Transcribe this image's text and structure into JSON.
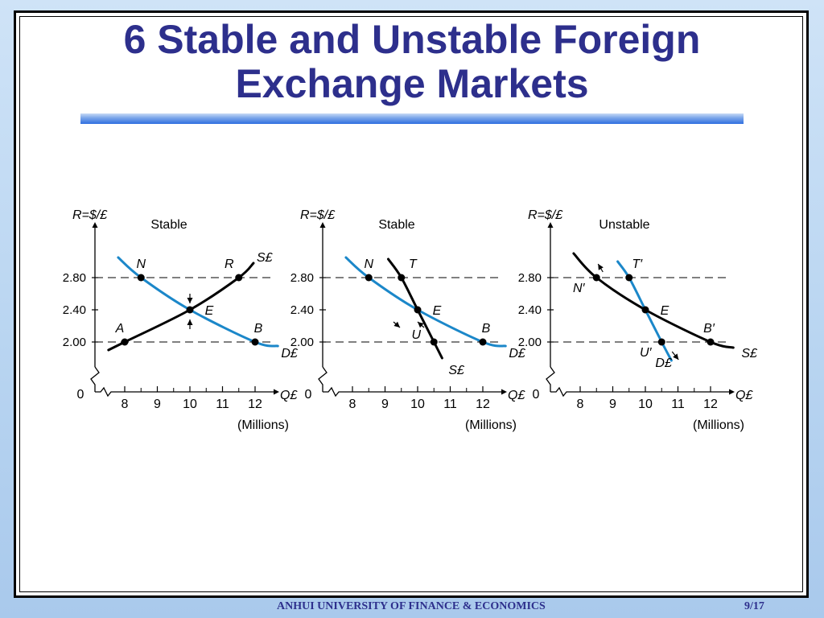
{
  "slide": {
    "title_line1": "6 Stable and Unstable Foreign",
    "title_line2": "Exchange Markets",
    "footer": "ANHUI UNIVERSITY OF FINANCE & ECONOMICS",
    "page": "9/17"
  },
  "colors": {
    "title": "#2d2f8c",
    "blue_curve": "#1b87c9",
    "black_curve": "#000000"
  },
  "chart_data": [
    {
      "type": "line",
      "title": "Stable",
      "ylabel": "R=$/£",
      "xlabel": "Q£",
      "xunit": "(Millions)",
      "xticks": [
        8,
        9,
        10,
        11,
        12
      ],
      "yticks": [
        "2.00",
        "2.40",
        "2.80"
      ],
      "origin": "0",
      "series": [
        {
          "name": "D£",
          "color": "blue",
          "points": [
            [
              7.8,
              3.05
            ],
            [
              8.5,
              2.8
            ],
            [
              10,
              2.4
            ],
            [
              12,
              2.0
            ],
            [
              12.7,
              1.95
            ]
          ]
        },
        {
          "name": "S£",
          "color": "black",
          "points": [
            [
              7.5,
              1.9
            ],
            [
              8,
              2.0
            ],
            [
              10,
              2.4
            ],
            [
              11.5,
              2.8
            ],
            [
              11.95,
              2.98
            ]
          ]
        }
      ],
      "points": [
        {
          "label": "N",
          "x": 8.5,
          "y": 2.8
        },
        {
          "label": "R",
          "x": 11.5,
          "y": 2.8
        },
        {
          "label": "E",
          "x": 10,
          "y": 2.4
        },
        {
          "label": "A",
          "x": 8,
          "y": 2.0
        },
        {
          "label": "B",
          "x": 12,
          "y": 2.0
        }
      ],
      "arrows": [
        "down toward E from above",
        "up toward E from below"
      ]
    },
    {
      "type": "line",
      "title": "Stable",
      "ylabel": "R=$/£",
      "xlabel": "Q£",
      "xunit": "(Millions)",
      "xticks": [
        8,
        9,
        10,
        11,
        12
      ],
      "yticks": [
        "2.00",
        "2.40",
        "2.80"
      ],
      "origin": "0",
      "series": [
        {
          "name": "D£",
          "color": "blue",
          "points": [
            [
              7.8,
              3.05
            ],
            [
              8.5,
              2.8
            ],
            [
              10,
              2.4
            ],
            [
              12,
              2.0
            ],
            [
              12.7,
              1.95
            ]
          ]
        },
        {
          "name": "S£",
          "color": "black",
          "points": [
            [
              9.1,
              3.03
            ],
            [
              9.5,
              2.8
            ],
            [
              10,
              2.4
            ],
            [
              10.5,
              2.0
            ],
            [
              10.75,
              1.8
            ]
          ]
        }
      ],
      "points": [
        {
          "label": "N",
          "x": 8.5,
          "y": 2.8
        },
        {
          "label": "T",
          "x": 9.5,
          "y": 2.8
        },
        {
          "label": "E",
          "x": 10,
          "y": 2.4
        },
        {
          "label": "U",
          "x": 10.5,
          "y": 2.0
        },
        {
          "label": "B",
          "x": 12,
          "y": 2.0
        }
      ],
      "arrows": [
        "from T toward E",
        "from U toward E"
      ]
    },
    {
      "type": "line",
      "title": "Unstable",
      "ylabel": "R=$/£",
      "xlabel": "Q£",
      "xunit": "(Millions)",
      "xticks": [
        8,
        9,
        10,
        11,
        12
      ],
      "yticks": [
        "2.00",
        "2.40",
        "2.80"
      ],
      "origin": "0",
      "series": [
        {
          "name": "S£",
          "color": "black",
          "points": [
            [
              7.8,
              3.1
            ],
            [
              8.5,
              2.8
            ],
            [
              10,
              2.4
            ],
            [
              12,
              2.0
            ],
            [
              12.7,
              1.93
            ]
          ]
        },
        {
          "name": "D£",
          "color": "blue",
          "points": [
            [
              9.15,
              3.0
            ],
            [
              9.5,
              2.8
            ],
            [
              10,
              2.4
            ],
            [
              10.5,
              2.0
            ],
            [
              10.8,
              1.77
            ]
          ]
        }
      ],
      "points": [
        {
          "label": "N′",
          "x": 8.5,
          "y": 2.8
        },
        {
          "label": "T′",
          "x": 9.5,
          "y": 2.8
        },
        {
          "label": "E",
          "x": 10,
          "y": 2.4
        },
        {
          "label": "U′",
          "x": 10.5,
          "y": 2.0
        },
        {
          "label": "B′",
          "x": 12,
          "y": 2.0
        }
      ],
      "arrows": [
        "away from N′ upward",
        "away from U′ downward"
      ]
    }
  ]
}
